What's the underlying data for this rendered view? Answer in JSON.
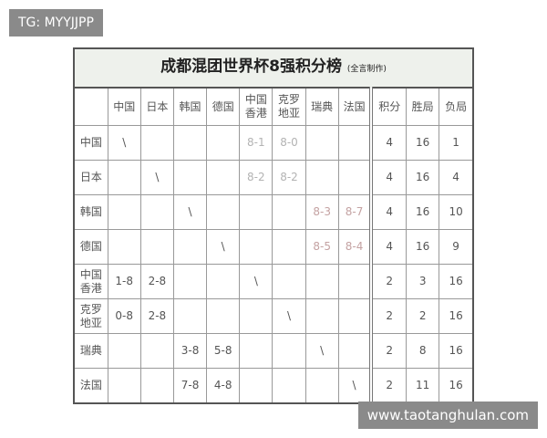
{
  "watermark_top": "TG: MYYJJPP",
  "watermark_bottom": "www.taotanghulan.com",
  "table": {
    "title": "成都混团世界杯8强积分榜",
    "title_note": "(全言制作)",
    "header": [
      "中国",
      "日本",
      "韩国",
      "德国",
      "中国\n香港",
      "克罗\n地亚",
      "瑞典",
      "法国",
      "积分",
      "胜局",
      "负局"
    ],
    "rows": [
      {
        "label": "中国",
        "cells": [
          "\\",
          null,
          null,
          null,
          "8-1",
          "8-0",
          null,
          null
        ],
        "score_color": "#b3b3b3",
        "points": 4,
        "wins": 16,
        "losses": 1
      },
      {
        "label": "日本",
        "cells": [
          null,
          "\\",
          null,
          null,
          "8-2",
          "8-2",
          null,
          null
        ],
        "score_color": "#b3b3b3",
        "points": 4,
        "wins": 16,
        "losses": 4
      },
      {
        "label": "韩国",
        "cells": [
          null,
          null,
          "\\",
          null,
          null,
          null,
          "8-3",
          "8-7"
        ],
        "score_color": "#c4a2a2",
        "points": 4,
        "wins": 16,
        "losses": 10
      },
      {
        "label": "德国",
        "cells": [
          null,
          null,
          null,
          "\\",
          null,
          null,
          "8-5",
          "8-4"
        ],
        "score_color": "#c4a2a2",
        "points": 4,
        "wins": 16,
        "losses": 9
      },
      {
        "label": "中国\n香港",
        "cells": [
          "1-8",
          "2-8",
          null,
          null,
          "\\",
          null,
          null,
          null
        ],
        "points": 2,
        "wins": 3,
        "losses": 16
      },
      {
        "label": "克罗\n地亚",
        "cells": [
          "0-8",
          "2-8",
          null,
          null,
          null,
          "\\",
          null,
          null
        ],
        "points": 2,
        "wins": 2,
        "losses": 16
      },
      {
        "label": "瑞典",
        "cells": [
          null,
          null,
          "3-8",
          "5-8",
          null,
          null,
          "\\",
          null
        ],
        "points": 2,
        "wins": 8,
        "losses": 16
      },
      {
        "label": "法国",
        "cells": [
          null,
          null,
          "7-8",
          "4-8",
          null,
          null,
          null,
          "\\"
        ],
        "points": 2,
        "wins": 11,
        "losses": 16
      }
    ]
  }
}
